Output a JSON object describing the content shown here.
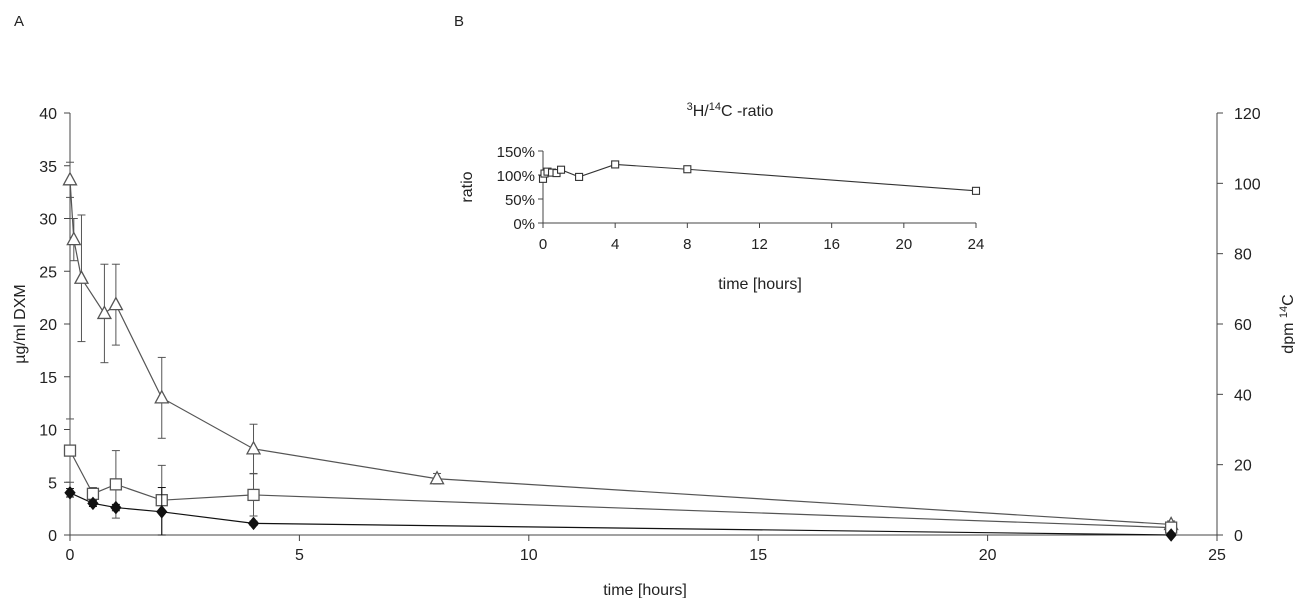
{
  "panels": {
    "a": "A",
    "b": "B"
  },
  "chart_data": [
    {
      "type": "line",
      "xlabel": "time [hours]",
      "ylabel": "µg/ml DXM",
      "y2label_main": "dpm ",
      "y2label_sup": "14",
      "y2label_tail": "C",
      "xlim": [
        0,
        25
      ],
      "ylim": [
        0,
        40
      ],
      "y2lim": [
        0,
        120
      ],
      "xticks": [
        0,
        5,
        10,
        15,
        20,
        25
      ],
      "yticks": [
        0,
        5,
        10,
        15,
        20,
        25,
        30,
        35,
        40
      ],
      "y2ticks": [
        0,
        20,
        40,
        60,
        80,
        100,
        120
      ],
      "grid": false,
      "series": [
        {
          "marker": "triangle",
          "axis": "right",
          "color": "#555555",
          "x": [
            0,
            0.083,
            0.25,
            0.75,
            1,
            2,
            4,
            8,
            24
          ],
          "y": [
            101,
            84,
            73,
            63,
            65.5,
            39,
            24.5,
            16,
            3
          ],
          "err": [
            5,
            6,
            18,
            14,
            11.5,
            11.5,
            7,
            1.5,
            1
          ]
        },
        {
          "marker": "square",
          "axis": "left",
          "color": "#555555",
          "x": [
            0,
            0.5,
            1,
            2,
            4,
            24
          ],
          "y": [
            8,
            3.9,
            4.8,
            3.3,
            3.8,
            0.7
          ],
          "err": [
            3,
            0.6,
            3.2,
            3.3,
            2,
            0.3
          ]
        },
        {
          "marker": "diamond",
          "axis": "left",
          "color": "#111111",
          "x": [
            0,
            0.5,
            1,
            2,
            4,
            24
          ],
          "y": [
            4,
            3.0,
            2.6,
            2.2,
            1.1,
            0
          ],
          "err": [
            0.4,
            0.3,
            0.3,
            2.3,
            0.2,
            0
          ]
        }
      ]
    },
    {
      "type": "line",
      "title_sup1": "3",
      "title_mid": "H/",
      "title_sup2": "14",
      "title_tail": "C -ratio",
      "xlabel": "time [hours]",
      "ylabel": "ratio",
      "xlim": [
        0,
        24
      ],
      "ylim": [
        0,
        150
      ],
      "xticks": [
        0,
        4,
        8,
        12,
        16,
        20,
        24
      ],
      "yticks": [
        0,
        50,
        100,
        150
      ],
      "ytick_labels": [
        "0%",
        "50%",
        "100%",
        "150%"
      ],
      "series": [
        {
          "marker": "square",
          "color": "#333333",
          "x": [
            0,
            0.083,
            0.25,
            0.5,
            0.75,
            1,
            2,
            4,
            8,
            24
          ],
          "y": [
            92,
            103,
            107,
            105,
            104,
            111,
            96,
            122,
            112,
            67
          ]
        }
      ]
    }
  ]
}
